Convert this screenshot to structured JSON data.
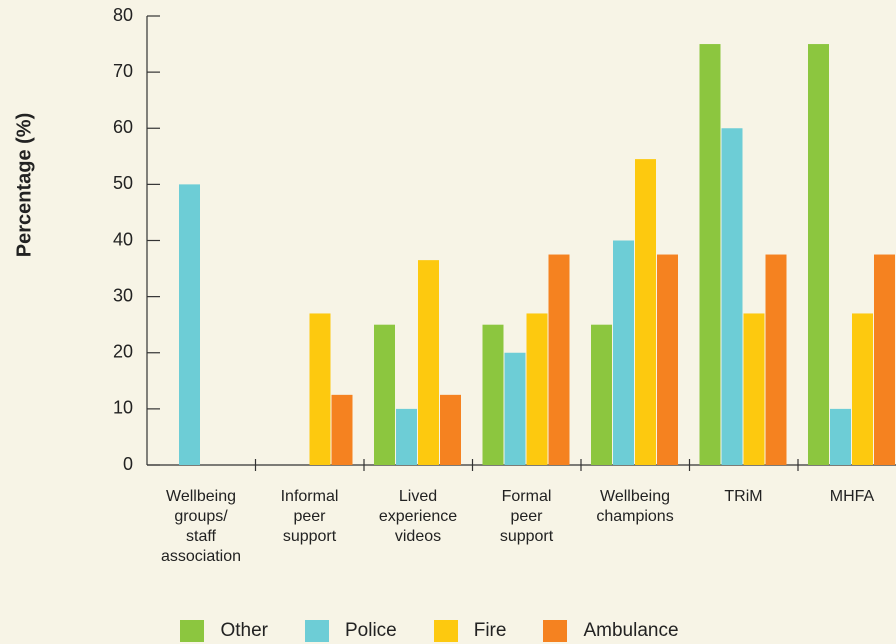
{
  "chart_data": {
    "type": "bar",
    "y_label": "Percentage (%)",
    "categories": [
      "Wellbeing\ngroups/\nstaff\nassociation",
      "Informal\npeer\nsupport",
      "Lived\nexperience\nvideos",
      "Formal\npeer\nsupport",
      "Wellbeing\nchampions",
      "TRiM",
      "MHFA"
    ],
    "series": [
      {
        "name": "Other",
        "color": "#8cc63f",
        "values": [
          0,
          0,
          25,
          25,
          25,
          75,
          75
        ]
      },
      {
        "name": "Police",
        "color": "#6dcdd6",
        "values": [
          50,
          0,
          10,
          20,
          40,
          60,
          10
        ]
      },
      {
        "name": "Fire",
        "color": "#fdc90f",
        "values": [
          0,
          27,
          36.5,
          27,
          54.5,
          27,
          27
        ]
      },
      {
        "name": "Ambulance",
        "color": "#f58220",
        "values": [
          0,
          12.5,
          12.5,
          37.5,
          37.5,
          37.5,
          37.5
        ]
      }
    ],
    "ylim": [
      0,
      80
    ],
    "yticks": [
      0,
      10,
      20,
      30,
      40,
      50,
      60,
      70,
      80
    ]
  }
}
